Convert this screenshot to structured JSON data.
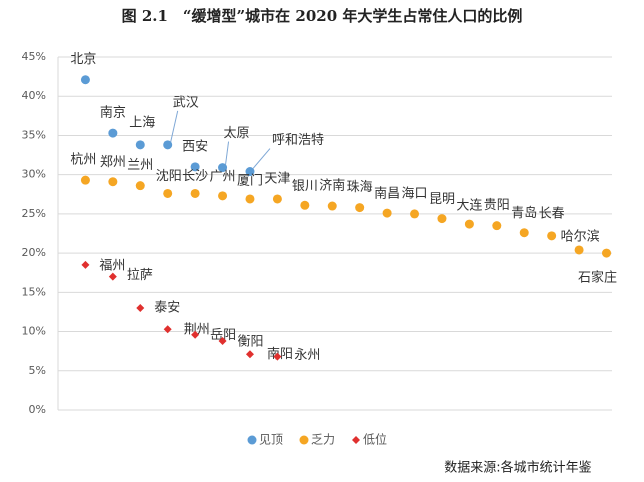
{
  "chart_data": {
    "type": "scatter",
    "title": "图 2.1　“缓增型”城市在 2020 年大学生占常住人口的比例",
    "note": "数据来源:各城市统计年鉴",
    "xlim": [
      0,
      20.2
    ],
    "ylim": [
      0,
      45
    ],
    "yticks": [
      {
        "value": 0,
        "label": "0%"
      },
      {
        "value": 5,
        "label": "5%"
      },
      {
        "value": 10,
        "label": "10%"
      },
      {
        "value": 15,
        "label": "15%"
      },
      {
        "value": 20,
        "label": "20%"
      },
      {
        "value": 25,
        "label": "25%"
      },
      {
        "value": 30,
        "label": "30%"
      },
      {
        "value": 35,
        "label": "35%"
      },
      {
        "value": 40,
        "label": "40%"
      },
      {
        "value": 45,
        "label": "45%"
      }
    ],
    "grid": true,
    "legend": "bottom",
    "series": [
      {
        "name": "见顶",
        "color": "#5b9bd5",
        "marker": "circle",
        "labels": [
          "北京",
          "南京",
          "上海",
          "武汉",
          "西安",
          "太原",
          "呼和浩特"
        ],
        "x": [
          1,
          2,
          3,
          4,
          5,
          6,
          7
        ],
        "values": [
          42.1,
          35.3,
          33.8,
          33.8,
          31.0,
          30.9,
          30.4
        ]
      },
      {
        "name": "乏力",
        "color": "#f5a623",
        "marker": "circle",
        "labels": [
          "杭州",
          "郑州",
          "兰州",
          "沈阳",
          "长沙",
          "广州",
          "厦门",
          "天津",
          "银川",
          "济南",
          "珠海",
          "南昌",
          "海口",
          "昆明",
          "大连",
          "贵阳",
          "青岛",
          "长春",
          "哈尔滨",
          "石家庄"
        ],
        "x": [
          1,
          2,
          3,
          4,
          5,
          6,
          7,
          8,
          9,
          10,
          11,
          12,
          13,
          14,
          15,
          16,
          17,
          18,
          19,
          20
        ],
        "values": [
          29.3,
          29.1,
          28.6,
          27.6,
          27.6,
          27.3,
          26.9,
          26.9,
          26.1,
          26.0,
          25.8,
          25.1,
          25.0,
          24.4,
          23.7,
          23.5,
          22.6,
          22.2,
          20.4,
          20.0
        ]
      },
      {
        "name": "低位",
        "color": "#e0302e",
        "marker": "diamond",
        "labels": [
          "福州",
          "拉萨",
          "泰安",
          "荆州",
          "岳阳",
          "衡阳",
          "南阳",
          "永州"
        ],
        "x": [
          1,
          2,
          3,
          4,
          5,
          6,
          7,
          8
        ],
        "values": [
          18.5,
          17.0,
          13.0,
          10.3,
          9.6,
          8.8,
          7.1,
          6.8
        ]
      }
    ]
  }
}
